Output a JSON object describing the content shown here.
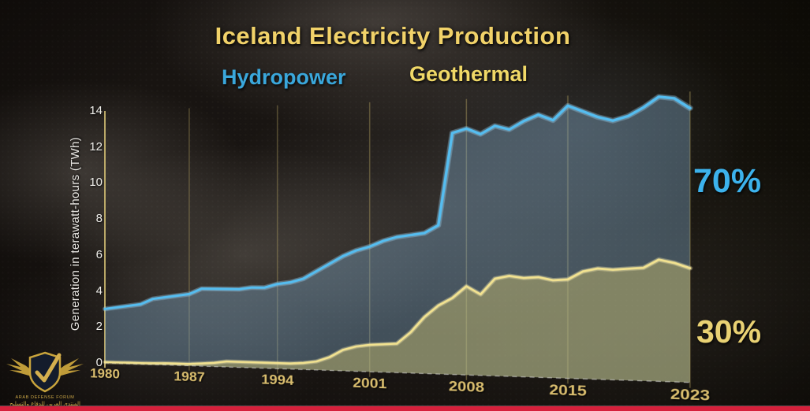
{
  "header": {
    "title": "Iceland Electricity Production",
    "series_labels": [
      {
        "label": "Hydropower",
        "color": "#3aa7db"
      },
      {
        "label": "Geothermal",
        "color": "#f0d867"
      }
    ]
  },
  "annotations": {
    "hydropower_share": "70%",
    "geothermal_share": "30%"
  },
  "watermark": {
    "org_en": "ARAB DEFENSE FORUM",
    "org_ar": "المنتدى العربي للدفاع والتسليح"
  },
  "video_overlay": {
    "progress_bar_color": "#d6203b"
  },
  "chart_data": {
    "type": "area",
    "title": "Iceland Electricity Production",
    "xlabel": "",
    "ylabel": "Generation in terawatt-hours (TWh)",
    "ylim": [
      0,
      14
    ],
    "yticks": [
      0,
      2,
      4,
      6,
      8,
      10,
      12,
      14
    ],
    "xticks": [
      1980,
      1987,
      1994,
      2001,
      2008,
      2015,
      2023
    ],
    "grid": "vertical",
    "legend_position": "top",
    "years": [
      1980,
      1981,
      1982,
      1983,
      1984,
      1985,
      1986,
      1987,
      1988,
      1989,
      1990,
      1991,
      1992,
      1993,
      1994,
      1995,
      1996,
      1997,
      1998,
      1999,
      2000,
      2001,
      2002,
      2003,
      2004,
      2005,
      2006,
      2007,
      2008,
      2009,
      2010,
      2011,
      2012,
      2013,
      2014,
      2015,
      2016,
      2017,
      2018,
      2019,
      2020,
      2021,
      2022,
      2023
    ],
    "series": [
      {
        "name": "Hydropower",
        "share_label": "70%",
        "line_color": "#55bdf0",
        "glow_color": "rgba(160,215,245,0.35)",
        "fill_color": "rgba(125,165,195,0.40)",
        "values": [
          3.0,
          3.1,
          3.2,
          3.3,
          3.6,
          3.7,
          3.8,
          3.9,
          4.2,
          4.2,
          4.2,
          4.2,
          4.3,
          4.3,
          4.5,
          4.6,
          4.8,
          5.2,
          5.6,
          6.0,
          6.3,
          6.5,
          6.8,
          7.0,
          7.1,
          7.2,
          7.6,
          12.3,
          12.5,
          12.2,
          12.6,
          12.4,
          12.8,
          13.1,
          12.8,
          13.5,
          13.2,
          12.9,
          12.7,
          12.9,
          13.3,
          13.8,
          13.7,
          13.2
        ]
      },
      {
        "name": "Geothermal",
        "share_label": "30%",
        "line_color": "#f2e290",
        "glow_color": "rgba(250,238,180,0.35)",
        "fill_color": "rgba(205,190,110,0.45)",
        "values": [
          0.05,
          0.05,
          0.06,
          0.06,
          0.07,
          0.09,
          0.1,
          0.1,
          0.15,
          0.2,
          0.3,
          0.3,
          0.3,
          0.3,
          0.3,
          0.3,
          0.35,
          0.45,
          0.7,
          1.1,
          1.3,
          1.4,
          1.45,
          1.5,
          2.1,
          2.9,
          3.5,
          3.9,
          4.5,
          4.1,
          4.9,
          5.05,
          4.95,
          5.0,
          4.85,
          4.9,
          5.3,
          5.45,
          5.4,
          5.45,
          5.5,
          5.9,
          5.75,
          5.5
        ]
      }
    ],
    "axis_color": "rgba(210,190,115,0.85)",
    "gridline_color": "rgba(200,180,105,0.40)"
  }
}
